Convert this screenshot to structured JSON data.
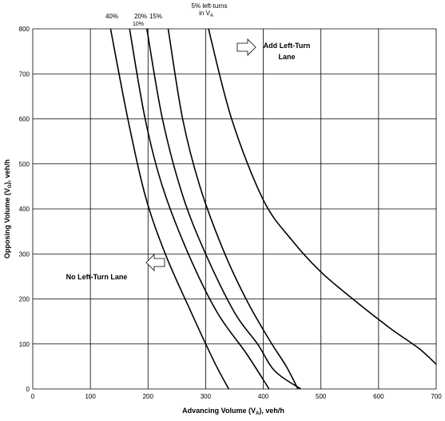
{
  "chart_data": {
    "type": "line",
    "xlabel": "Advancing Volume (V",
    "xlabel_sub": "A",
    "xlabel_suffix": "), veh/h",
    "ylabel": "Opposing Volume (V",
    "ylabel_sub": "O",
    "ylabel_suffix": "), veh/h",
    "xlim": [
      0,
      700
    ],
    "ylim": [
      0,
      800
    ],
    "x_ticks": [
      0,
      100,
      200,
      300,
      400,
      500,
      600,
      700
    ],
    "y_ticks": [
      0,
      100,
      200,
      300,
      400,
      500,
      600,
      700,
      800
    ],
    "grid": true,
    "series": [
      {
        "name": "5%",
        "label_lines": [
          "5% left-turns",
          "in V"
        ],
        "label_sub": "A",
        "points": [
          [
            305,
            800
          ],
          [
            345,
            600
          ],
          [
            400,
            420
          ],
          [
            450,
            330
          ],
          [
            500,
            260
          ],
          [
            560,
            195
          ],
          [
            620,
            135
          ],
          [
            670,
            90
          ],
          [
            700,
            55
          ]
        ]
      },
      {
        "name": "10%",
        "points": [
          [
            235,
            800
          ],
          [
            260,
            600
          ],
          [
            290,
            450
          ],
          [
            330,
            310
          ],
          [
            370,
            200
          ],
          [
            410,
            110
          ],
          [
            440,
            50
          ],
          [
            460,
            0
          ]
        ]
      },
      {
        "name": "15%",
        "points": [
          [
            198,
            800
          ],
          [
            225,
            600
          ],
          [
            260,
            430
          ],
          [
            300,
            300
          ],
          [
            350,
            170
          ],
          [
            390,
            100
          ],
          [
            420,
            40
          ],
          [
            465,
            0
          ]
        ]
      },
      {
        "name": "20%",
        "points": [
          [
            168,
            800
          ],
          [
            195,
            600
          ],
          [
            225,
            450
          ],
          [
            270,
            300
          ],
          [
            320,
            170
          ],
          [
            370,
            80
          ],
          [
            410,
            0
          ]
        ]
      },
      {
        "name": "40%",
        "points": [
          [
            135,
            800
          ],
          [
            165,
            600
          ],
          [
            195,
            430
          ],
          [
            230,
            300
          ],
          [
            275,
            170
          ],
          [
            315,
            60
          ],
          [
            340,
            0
          ]
        ]
      }
    ],
    "annotations": {
      "add_lane_lines": [
        "Add Left-Turn",
        "Lane"
      ],
      "no_lane": "No Left-Turn Lane"
    }
  }
}
